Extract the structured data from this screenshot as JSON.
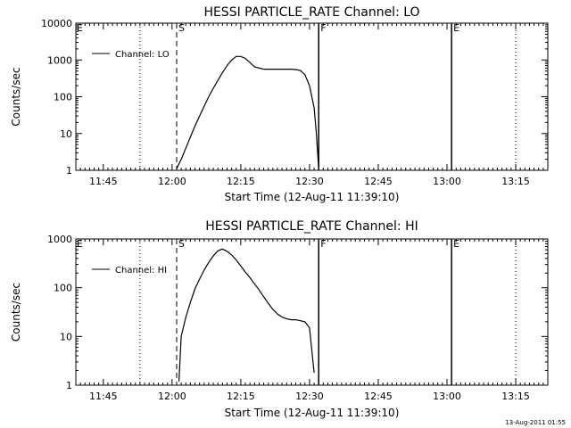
{
  "footer_timestamp": "13-Aug-2011 01:55",
  "chart_data": [
    {
      "type": "line",
      "title": "HESSI PARTICLE_RATE Channel: LO",
      "xlabel": "Start Time (12-Aug-11 11:39:10)",
      "ylabel": "Counts/sec",
      "y_scale": "log",
      "ylim": [
        1,
        10000
      ],
      "y_tick_labels": [
        "1",
        "10",
        "100",
        "1000",
        "10000"
      ],
      "xlim": [
        "11:39",
        "13:22"
      ],
      "x_tick_labels": [
        "11:45",
        "12:00",
        "12:15",
        "12:30",
        "12:45",
        "13:00",
        "13:15"
      ],
      "legend": "top-left",
      "series": [
        {
          "name": "Channel: LO",
          "x": [
            "12:01",
            "12:02",
            "12:03",
            "12:04",
            "12:05",
            "12:06",
            "12:07",
            "12:08",
            "12:09",
            "12:10",
            "12:11",
            "12:12",
            "12:13",
            "12:14",
            "12:15",
            "12:16",
            "12:17",
            "12:18",
            "12:20",
            "12:22",
            "12:24",
            "12:26",
            "12:27",
            "12:28",
            "12:29",
            "12:30",
            "12:31",
            "12:31.5",
            "12:32"
          ],
          "values": [
            1.1,
            2.0,
            4.0,
            8.0,
            16,
            30,
            55,
            100,
            170,
            280,
            450,
            700,
            1000,
            1250,
            1250,
            1100,
            850,
            650,
            560,
            560,
            560,
            560,
            550,
            520,
            400,
            200,
            50,
            10,
            1.1
          ]
        }
      ],
      "markers": [
        {
          "label": "S",
          "time": "12:01",
          "style": "dashed"
        },
        {
          "label": "",
          "time": "11:53",
          "style": "dotted"
        },
        {
          "label": "F",
          "time": "12:32",
          "style": "solid"
        },
        {
          "label": "E",
          "time": "13:01",
          "style": "solid"
        },
        {
          "label": "",
          "time": "13:15",
          "style": "dotted"
        }
      ],
      "edge_marker_left": "E"
    },
    {
      "type": "line",
      "title": "HESSI PARTICLE_RATE Channel: HI",
      "xlabel": "Start Time (12-Aug-11 11:39:10)",
      "ylabel": "Counts/sec",
      "y_scale": "log",
      "ylim": [
        1,
        1000
      ],
      "y_tick_labels": [
        "1",
        "10",
        "100",
        "1000"
      ],
      "xlim": [
        "11:39",
        "13:22"
      ],
      "x_tick_labels": [
        "11:45",
        "12:00",
        "12:15",
        "12:30",
        "12:45",
        "13:00",
        "13:15"
      ],
      "legend": "top-left",
      "series": [
        {
          "name": "Channel: HI",
          "x": [
            "12:01.5",
            "12:02",
            "12:03",
            "12:04",
            "12:05",
            "12:06",
            "12:07",
            "12:08",
            "12:09",
            "12:10",
            "12:11",
            "12:12",
            "12:13",
            "12:14",
            "12:15",
            "12:16",
            "12:17",
            "12:18",
            "12:19",
            "12:20",
            "12:21",
            "12:22",
            "12:23",
            "12:24",
            "12:25",
            "12:26",
            "12:27",
            "12:28",
            "12:29",
            "12:30",
            "12:31"
          ],
          "values": [
            1.2,
            10,
            25,
            50,
            95,
            150,
            230,
            330,
            450,
            570,
            620,
            560,
            470,
            370,
            280,
            210,
            160,
            120,
            90,
            65,
            48,
            36,
            29,
            25,
            23,
            22,
            22,
            21,
            20,
            15,
            1.8
          ]
        }
      ],
      "markers": [
        {
          "label": "S",
          "time": "12:01",
          "style": "dashed"
        },
        {
          "label": "",
          "time": "11:53",
          "style": "dotted"
        },
        {
          "label": "F",
          "time": "12:32",
          "style": "solid"
        },
        {
          "label": "E",
          "time": "13:01",
          "style": "solid"
        },
        {
          "label": "",
          "time": "13:15",
          "style": "dotted"
        }
      ],
      "edge_marker_left": "E"
    }
  ]
}
